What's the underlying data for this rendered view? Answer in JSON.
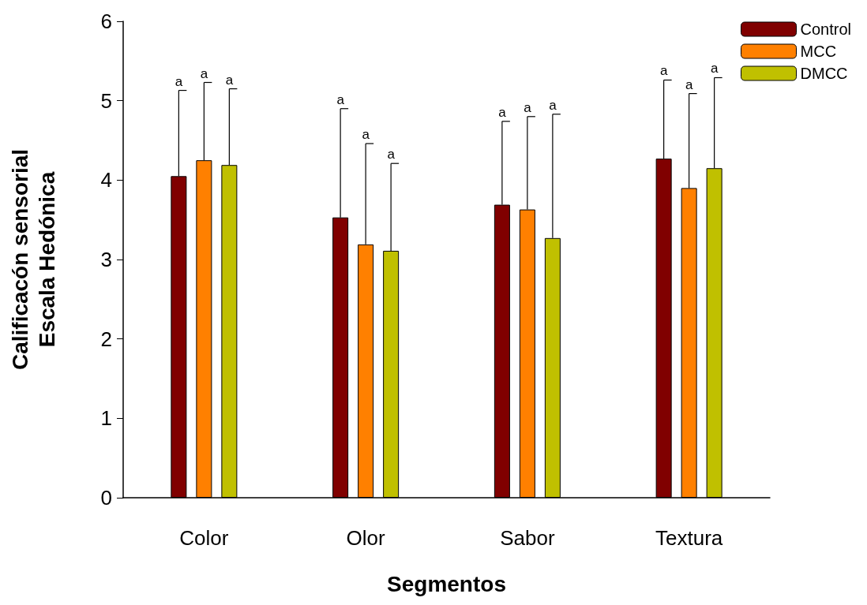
{
  "chart_data": {
    "type": "bar",
    "xlabel": "Segmentos",
    "ylabel": "Calificacón sensorial\nEscala Hedónica",
    "categories": [
      "Color",
      "Olor",
      "Sabor",
      "Textura"
    ],
    "series": [
      {
        "name": "Control",
        "color": "#800000",
        "values": [
          4.05,
          3.53,
          3.69,
          4.27
        ],
        "errors": [
          [
            4.05,
            5.13
          ],
          [
            3.53,
            4.9
          ],
          [
            3.69,
            4.74
          ],
          [
            4.27,
            5.26
          ]
        ]
      },
      {
        "name": "MCC",
        "color": "#ff8000",
        "values": [
          4.25,
          3.19,
          3.63,
          3.9
        ],
        "errors": [
          [
            4.25,
            5.23
          ],
          [
            3.19,
            4.46
          ],
          [
            3.63,
            4.8
          ],
          [
            3.9,
            5.09
          ]
        ]
      },
      {
        "name": "DMCC",
        "color": "#c0c000",
        "values": [
          4.19,
          3.11,
          3.27,
          4.15
        ],
        "errors": [
          [
            4.19,
            5.15
          ],
          [
            3.11,
            4.21
          ],
          [
            3.27,
            4.83
          ],
          [
            4.15,
            5.29
          ]
        ]
      }
    ],
    "annotations": [
      "a",
      "a",
      "a",
      "a",
      "a",
      "a",
      "a",
      "a",
      "a",
      "a",
      "a",
      "a"
    ],
    "ylim": [
      0,
      6
    ],
    "yticks": [
      0,
      1,
      2,
      3,
      4,
      5,
      6
    ],
    "grid": false,
    "legend": "top right"
  }
}
